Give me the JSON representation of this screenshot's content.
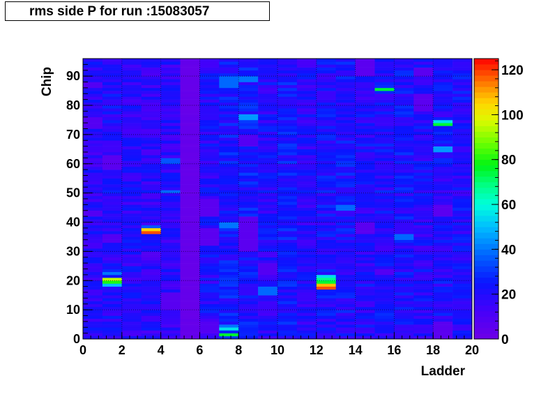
{
  "title": "rms side P for run :15083057",
  "chart_data": {
    "type": "heatmap",
    "title": "rms side P for run :15083057",
    "xlabel": "Ladder",
    "ylabel": "Chip",
    "xlim": [
      0,
      20
    ],
    "ylim": [
      0,
      96
    ],
    "zlim": [
      0,
      125
    ],
    "x_ticks": [
      0,
      2,
      4,
      6,
      8,
      10,
      12,
      14,
      16,
      18,
      20
    ],
    "y_ticks": [
      0,
      10,
      20,
      30,
      40,
      50,
      60,
      70,
      80,
      90
    ],
    "z_ticks": [
      0,
      20,
      40,
      60,
      80,
      100,
      120
    ],
    "x_bins": 20,
    "y_bins": 96,
    "grid": true,
    "colorbar": "right",
    "columns": [
      {
        "ladder_bin": 0,
        "base": 18,
        "hot": [
          [
            72,
            76,
            8
          ],
          [
            86,
            88,
            8
          ],
          [
            42,
            44,
            8
          ]
        ]
      },
      {
        "ladder_bin": 1,
        "base": 20,
        "hot": [
          [
            19,
            20,
            80
          ],
          [
            20,
            21,
            95
          ],
          [
            18,
            19,
            50
          ],
          [
            22,
            23,
            40
          ],
          [
            58,
            63,
            6
          ],
          [
            33,
            36,
            8
          ]
        ]
      },
      {
        "ladder_bin": 2,
        "base": 19,
        "hot": []
      },
      {
        "ladder_bin": 3,
        "base": 18,
        "hot": [
          [
            36,
            37,
            118
          ],
          [
            37,
            38,
            105
          ],
          [
            38,
            39,
            35
          ],
          [
            28,
            30,
            8
          ]
        ]
      },
      {
        "ladder_bin": 4,
        "base": 18,
        "hot": [
          [
            10,
            16,
            7
          ],
          [
            50,
            51,
            38
          ],
          [
            60,
            62,
            35
          ]
        ]
      },
      {
        "ladder_bin": 5,
        "base": 2,
        "hot": []
      },
      {
        "ladder_bin": 6,
        "base": 20,
        "hot": [
          [
            32,
            38,
            6
          ],
          [
            42,
            48,
            6
          ],
          [
            2,
            6,
            8
          ]
        ]
      },
      {
        "ladder_bin": 7,
        "base": 24,
        "hot": [
          [
            0,
            1,
            30
          ],
          [
            1,
            2,
            75
          ],
          [
            3,
            4,
            55
          ],
          [
            4,
            5,
            40
          ],
          [
            38,
            40,
            40
          ],
          [
            86,
            90,
            38
          ]
        ]
      },
      {
        "ladder_bin": 8,
        "base": 24,
        "hot": [
          [
            30,
            42,
            6
          ],
          [
            66,
            70,
            8
          ],
          [
            88,
            90,
            40
          ],
          [
            75,
            77,
            45
          ]
        ]
      },
      {
        "ladder_bin": 9,
        "base": 20,
        "hot": [
          [
            15,
            18,
            38
          ],
          [
            22,
            26,
            8
          ]
        ]
      },
      {
        "ladder_bin": 10,
        "base": 24,
        "hot": []
      },
      {
        "ladder_bin": 11,
        "base": 19,
        "hot": []
      },
      {
        "ladder_bin": 12,
        "base": 22,
        "hot": [
          [
            17,
            18,
            118
          ],
          [
            18,
            19,
            108
          ],
          [
            19,
            20,
            75
          ],
          [
            20,
            21,
            68
          ],
          [
            21,
            22,
            55
          ]
        ]
      },
      {
        "ladder_bin": 13,
        "base": 22,
        "hot": [
          [
            44,
            46,
            38
          ]
        ]
      },
      {
        "ladder_bin": 14,
        "base": 20,
        "hot": [
          [
            36,
            40,
            6
          ],
          [
            90,
            96,
            6
          ]
        ]
      },
      {
        "ladder_bin": 15,
        "base": 21,
        "hot": [
          [
            85,
            86,
            75
          ],
          [
            22,
            24,
            8
          ]
        ]
      },
      {
        "ladder_bin": 16,
        "base": 22,
        "hot": [
          [
            34,
            36,
            38
          ]
        ]
      },
      {
        "ladder_bin": 17,
        "base": 20,
        "hot": [
          [
            78,
            84,
            6
          ],
          [
            90,
            93,
            6
          ]
        ]
      },
      {
        "ladder_bin": 18,
        "base": 21,
        "hot": [
          [
            73,
            74,
            75
          ],
          [
            74,
            75,
            55
          ],
          [
            42,
            46,
            6
          ],
          [
            0,
            6,
            6
          ],
          [
            64,
            66,
            45
          ]
        ]
      },
      {
        "ladder_bin": 19,
        "base": 21,
        "hot": []
      }
    ]
  }
}
